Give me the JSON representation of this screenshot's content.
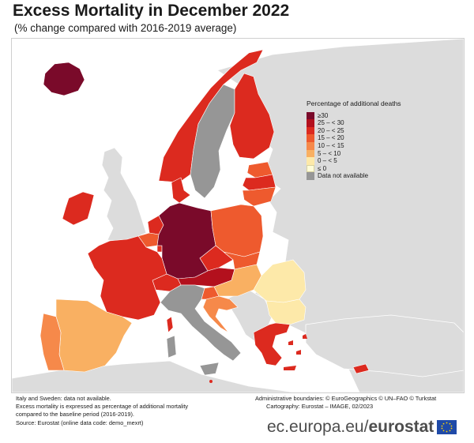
{
  "title": "Excess Mortality in December 2022",
  "subtitle": "(% change compared with 2016-2019 average)",
  "legend": {
    "title": "Percentage of additional deaths",
    "items": [
      {
        "label": "≥30",
        "color": "#7a0a2a"
      },
      {
        "label": "25 – < 30",
        "color": "#b3101d"
      },
      {
        "label": "20 – < 25",
        "color": "#dc2a1f"
      },
      {
        "label": "15 – < 20",
        "color": "#ee5a2e"
      },
      {
        "label": "10 – < 15",
        "color": "#f6894a"
      },
      {
        "label": "5 – < 10",
        "color": "#f9b062"
      },
      {
        "label": "0 – < 5",
        "color": "#fde9a9"
      },
      {
        "label": "≤ 0",
        "color": "#fffcd8"
      },
      {
        "label": "Data not available",
        "color": "#969696"
      }
    ]
  },
  "notes": {
    "line1": "Italy and Sweden: data not available.",
    "line2": "Excess mortality is expressed as percentage of additional mortality",
    "line3": "compared to the baseline period (2016-2019).",
    "line4": "Source: Eurostat (online data code: demo_mexrt)"
  },
  "credits": {
    "boundaries": "Administrative boundaries: © EuroGeographics © UN–FAO © Turkstat",
    "cartography": "Cartography: Eurostat – IMAGE, 02/2023"
  },
  "brand": {
    "url": "ec.europa.eu/",
    "name": "eurostat"
  },
  "colors": {
    "background_land": "#dcdcdc",
    "sea": "#ffffff",
    "no_data": "#969696"
  },
  "countries": [
    {
      "name": "Iceland",
      "class": "≥30",
      "color": "#7a0a2a"
    },
    {
      "name": "Ireland",
      "class": "20 – < 25",
      "color": "#dc2a1f"
    },
    {
      "name": "Norway",
      "class": "20 – < 25",
      "color": "#dc2a1f"
    },
    {
      "name": "Sweden",
      "class": "Data not available",
      "color": "#969696"
    },
    {
      "name": "Finland",
      "class": "20 – < 25",
      "color": "#dc2a1f"
    },
    {
      "name": "Estonia",
      "class": "15 – < 20",
      "color": "#ee5a2e"
    },
    {
      "name": "Latvia",
      "class": "20 – < 25",
      "color": "#dc2a1f"
    },
    {
      "name": "Lithuania",
      "class": "15 – < 20",
      "color": "#ee5a2e"
    },
    {
      "name": "Denmark",
      "class": "20 – < 25",
      "color": "#dc2a1f"
    },
    {
      "name": "Netherlands",
      "class": "20 – < 25",
      "color": "#dc2a1f"
    },
    {
      "name": "Belgium",
      "class": "15 – < 20",
      "color": "#ee5a2e"
    },
    {
      "name": "Luxembourg",
      "class": "20 – < 25",
      "color": "#dc2a1f"
    },
    {
      "name": "Germany",
      "class": "≥30",
      "color": "#7a0a2a"
    },
    {
      "name": "Poland",
      "class": "15 – < 20",
      "color": "#ee5a2e"
    },
    {
      "name": "Czechia",
      "class": "20 – < 25",
      "color": "#dc2a1f"
    },
    {
      "name": "Slovakia",
      "class": "15 – < 20",
      "color": "#ee5a2e"
    },
    {
      "name": "Austria",
      "class": "25 – < 30",
      "color": "#b3101d"
    },
    {
      "name": "Switzerland",
      "class": "20 – < 25",
      "color": "#dc2a1f"
    },
    {
      "name": "Liechtenstein",
      "class": "20 – < 25",
      "color": "#dc2a1f"
    },
    {
      "name": "France",
      "class": "20 – < 25",
      "color": "#dc2a1f"
    },
    {
      "name": "Spain",
      "class": "5 – < 10",
      "color": "#f9b062"
    },
    {
      "name": "Portugal",
      "class": "10 – < 15",
      "color": "#f6894a"
    },
    {
      "name": "Italy",
      "class": "Data not available",
      "color": "#969696"
    },
    {
      "name": "Malta",
      "class": "20 – < 25",
      "color": "#dc2a1f"
    },
    {
      "name": "Slovenia",
      "class": "15 – < 20",
      "color": "#ee5a2e"
    },
    {
      "name": "Croatia",
      "class": "10 – < 15",
      "color": "#f6894a"
    },
    {
      "name": "Hungary",
      "class": "5 – < 10",
      "color": "#f9b062"
    },
    {
      "name": "Romania",
      "class": "0 – < 5",
      "color": "#fde9a9"
    },
    {
      "name": "Bulgaria",
      "class": "0 – < 5",
      "color": "#fde9a9"
    },
    {
      "name": "Greece",
      "class": "20 – < 25",
      "color": "#dc2a1f"
    },
    {
      "name": "Cyprus",
      "class": "20 – < 25",
      "color": "#dc2a1f"
    }
  ]
}
